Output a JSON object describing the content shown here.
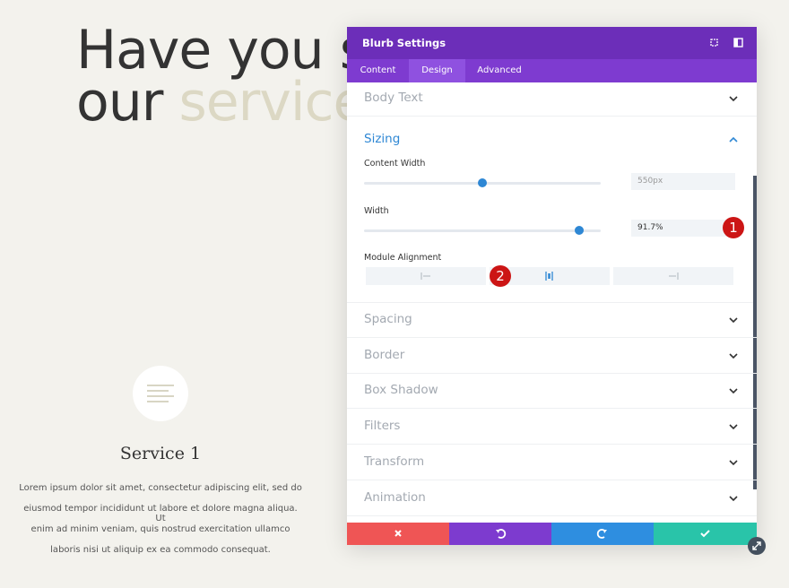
{
  "hero": {
    "line1": "Have you s",
    "line2_dark": "our",
    "line2_light": "service"
  },
  "service": {
    "title": "Service 1",
    "body": [
      "Lorem ipsum dolor sit amet, consectetur adipiscing elit, sed do",
      "eiusmod tempor incididunt ut labore et dolore magna aliqua. Ut",
      "enim ad minim veniam, quis nostrud exercitation ullamco",
      "laboris nisi ut aliquip ex ea commodo consequat."
    ]
  },
  "panel": {
    "title": "Blurb Settings",
    "tabs": [
      "Content",
      "Design",
      "Advanced"
    ],
    "body_text": "Body Text",
    "sizing": "Sizing",
    "fields": [
      {
        "label": "Content Width",
        "value": "550px"
      },
      {
        "label": "Width",
        "value": "91.7%"
      }
    ],
    "alignment_label": "Module Alignment",
    "badges": [
      "1",
      "2"
    ],
    "sections": [
      "Spacing",
      "Border",
      "Box Shadow",
      "Filters",
      "Transform",
      "Animation"
    ]
  }
}
